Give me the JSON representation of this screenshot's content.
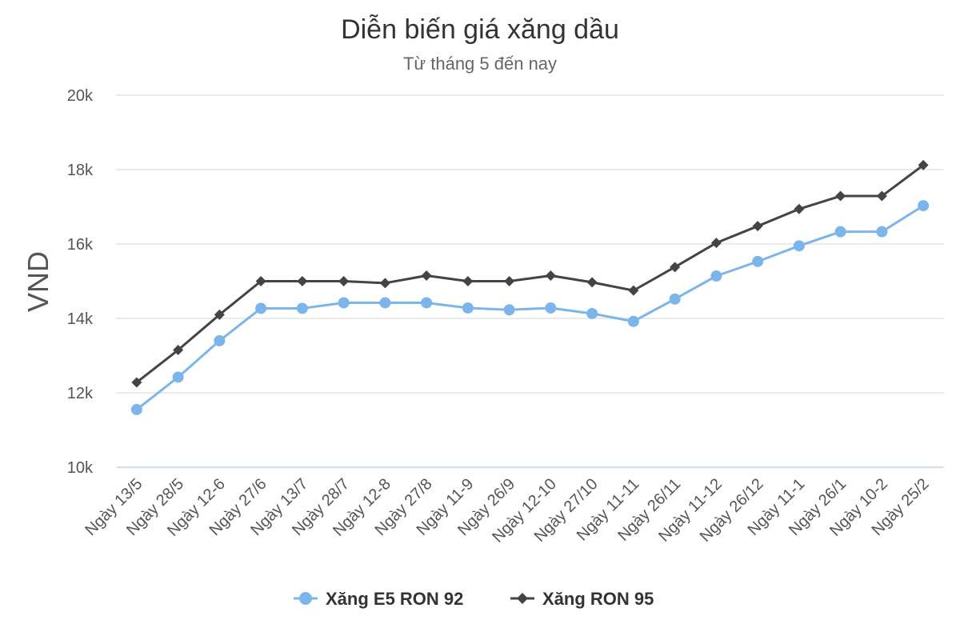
{
  "chart_data": {
    "type": "line",
    "title": "Diễn biến giá xăng dầu",
    "subtitle": "Từ tháng 5 đến nay",
    "ylabel": "VND",
    "xlabel": "",
    "ylim": [
      10000,
      20000
    ],
    "yticks": [
      10000,
      12000,
      14000,
      16000,
      18000,
      20000
    ],
    "ytick_labels": [
      "10k",
      "12k",
      "14k",
      "16k",
      "18k",
      "20k"
    ],
    "grid": true,
    "legend_position": "bottom",
    "categories": [
      "Ngày 13/5",
      "Ngày 28/5",
      "Ngày 12-6",
      "Ngày 27/6",
      "Ngày 13/7",
      "Ngày 28/7",
      "Ngày 12-8",
      "Ngày 27/8",
      "Ngày 11-9",
      "Ngày 26/9",
      "Ngày 12-10",
      "Ngày 27/10",
      "Ngày 11-11",
      "Ngày 26/11",
      "Ngày 11-12",
      "Ngày 26/12",
      "Ngày 11-1",
      "Ngày 26/1",
      "Ngày 10-2",
      "Ngày 25/2"
    ],
    "series": [
      {
        "name": "Xăng E5 RON 92",
        "color": "#7cb5ec",
        "marker": "circle",
        "values": [
          11550,
          12420,
          13400,
          14270,
          14270,
          14420,
          14420,
          14420,
          14280,
          14230,
          14280,
          14130,
          13920,
          14520,
          15140,
          15530,
          15950,
          16330,
          16330,
          17030
        ]
      },
      {
        "name": "Xăng RON 95",
        "color": "#434348",
        "marker": "diamond",
        "values": [
          12280,
          13150,
          14100,
          15000,
          15000,
          15000,
          14950,
          15150,
          15000,
          15000,
          15150,
          14970,
          14750,
          15380,
          16030,
          16480,
          16940,
          17290,
          17290,
          18120
        ]
      }
    ]
  }
}
